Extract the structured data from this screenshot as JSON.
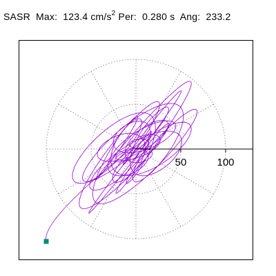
{
  "header": {
    "name": "SASR",
    "max_label": "Max:",
    "max_value": "123.4",
    "max_unit": "cm/s",
    "max_unit_exp": "2",
    "per_label": "Per:",
    "per_value": "0.280 s",
    "ang_label": "Ang:",
    "ang_value": "233.2"
  },
  "chart_data": {
    "type": "polar-orbit",
    "title": "",
    "radial_ticks": [
      50,
      100
    ],
    "radial_tick_labels": [
      "50",
      "100"
    ],
    "max_radius": 123.4,
    "angle_of_max_deg": 233.2,
    "grid": "dotted",
    "circle_radii": [
      50,
      100
    ],
    "spoke_angles_deg": [
      0,
      30,
      60,
      90,
      120,
      150,
      180,
      210,
      240,
      270,
      300,
      330
    ],
    "trace_color": "#9400d3",
    "end_marker_color": "#008b75",
    "end_point": [
      -100,
      -103
    ],
    "orbit_description_major_axis_deg": 28
  }
}
